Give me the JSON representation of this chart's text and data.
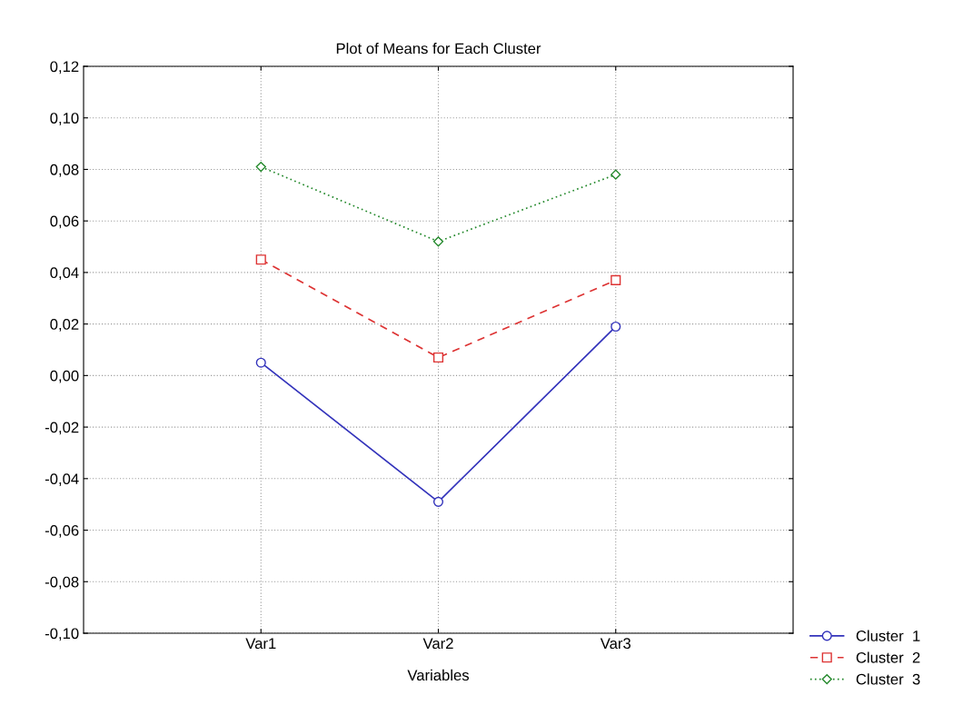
{
  "chart_data": {
    "type": "line",
    "title": "Plot of Means for Each Cluster",
    "xlabel": "Variables",
    "categories": [
      "Var1",
      "Var2",
      "Var3"
    ],
    "series": [
      {
        "name": "Cluster  1",
        "color": "#3333bb",
        "values": [
          0.005,
          -0.049,
          0.019
        ],
        "marker": "circle",
        "line_style": "solid"
      },
      {
        "name": "Cluster  2",
        "color": "#dd3333",
        "values": [
          0.045,
          0.007,
          0.037
        ],
        "marker": "square",
        "line_style": "dashed"
      },
      {
        "name": "Cluster  3",
        "color": "#22882a",
        "values": [
          0.081,
          0.052,
          0.078
        ],
        "marker": "diamond",
        "line_style": "dotted"
      }
    ],
    "ylim": [
      -0.1,
      0.12
    ],
    "yticks": [
      {
        "value": -0.1,
        "label": "-0,10"
      },
      {
        "value": -0.08,
        "label": "-0,08"
      },
      {
        "value": -0.06,
        "label": "-0,06"
      },
      {
        "value": -0.04,
        "label": "-0,04"
      },
      {
        "value": -0.02,
        "label": "-0,02"
      },
      {
        "value": 0,
        "label": "0,00"
      },
      {
        "value": 0.02,
        "label": "0,02"
      },
      {
        "value": 0.04,
        "label": "0,04"
      },
      {
        "value": 0.06,
        "label": "0,06"
      },
      {
        "value": 0.08,
        "label": "0,08"
      },
      {
        "value": 0.1,
        "label": "0,10"
      },
      {
        "value": 0.12,
        "label": "0,12"
      }
    ],
    "grid": true,
    "legend": "bottom right"
  }
}
